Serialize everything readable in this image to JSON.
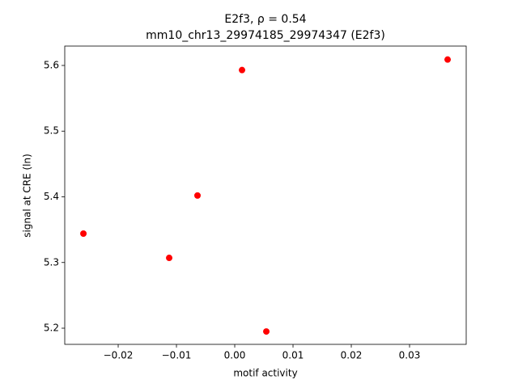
{
  "chart_data": {
    "type": "scatter",
    "title": "E2f3, ρ = 0.54",
    "subtitle": "mm10_chr13_29974185_29974347 (E2f3)",
    "x_label": "motif activity",
    "y_label": "signal at CRE (ln)",
    "color": "#ff0000",
    "x": [
      -0.02597,
      -0.01125,
      -0.00639,
      0.00125,
      0.00542,
      0.03653
    ],
    "values": [
      5.344,
      5.307,
      5.402,
      5.593,
      5.195,
      5.609
    ],
    "xlim": [
      -0.02917,
      0.03972
    ],
    "ylim": [
      5.1754,
      5.6295
    ],
    "xticks": [
      {
        "value": -0.02,
        "label": "−0.02"
      },
      {
        "value": -0.01,
        "label": "−0.01"
      },
      {
        "value": 0,
        "label": "0.00"
      },
      0.01,
      0.02,
      0.03
    ],
    "yticks": [
      5.2,
      5.3,
      5.4,
      5.5,
      5.6
    ]
  }
}
